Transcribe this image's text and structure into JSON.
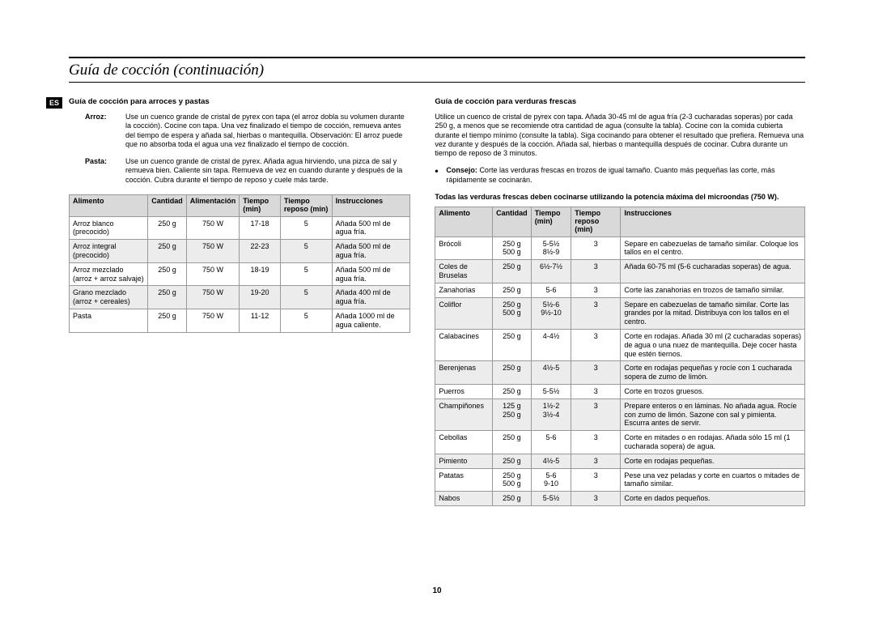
{
  "pageTitle": "Guía de cocción (continuación)",
  "esLabel": "ES",
  "pageNumber": "10",
  "left": {
    "heading": "Guía de cocción para arroces y pastas",
    "arrozLabel": "Arroz:",
    "arrozText": "Use un cuenco grande de cristal de pyrex con tapa (el arroz dobla su volumen durante la cocción). Cocine con tapa.\nUna vez finalizado el tiempo de cocción, remueva antes del tiempo de espera y añada sal, hierbas o mantequilla.\nObservación: El arroz puede que no absorba toda el agua una vez finalizado el tiempo de cocción.",
    "pastaLabel": "Pasta:",
    "pastaText": "Use un cuenco grande de cristal de pyrex. Añada agua hirviendo, una pizca de sal y remueva bien. Caliente sin tapa.\nRemueva de vez en cuando durante y después de la cocción. Cubra durante el tiempo de reposo y cuele más tarde.",
    "headers": {
      "c0": "Alimento",
      "c1": "Cantidad",
      "c2": "Alimentación",
      "c3": "Tiempo (min)",
      "c4": "Tiempo reposo (min)",
      "c5": "Instrucciones"
    },
    "rows": [
      {
        "a": "Arroz blanco (precocido)",
        "q": "250 g",
        "p": "750 W",
        "t": "17-18",
        "r": "5",
        "i": "Añada 500 ml de agua fría."
      },
      {
        "a": "Arroz integral (precocido)",
        "q": "250 g",
        "p": "750 W",
        "t": "22-23",
        "r": "5",
        "i": "Añada 500 ml de agua fría."
      },
      {
        "a": "Arroz mezclado (arroz + arroz salvaje)",
        "q": "250 g",
        "p": "750 W",
        "t": "18-19",
        "r": "5",
        "i": "Añada 500 ml de agua fría."
      },
      {
        "a": "Grano mezclado (arroz + cereales)",
        "q": "250 g",
        "p": "750 W",
        "t": "19-20",
        "r": "5",
        "i": "Añada 400 ml de agua fría."
      },
      {
        "a": "Pasta",
        "q": "250 g",
        "p": "750 W",
        "t": "11-12",
        "r": "5",
        "i": "Añada 1000 ml de agua caliente."
      }
    ]
  },
  "right": {
    "heading": "Guía de cocción para verduras frescas",
    "intro": "Utilice un cuenco de cristal de pyrex con tapa. Añada 30-45 ml de agua fría (2-3 cucharadas soperas) por cada 250 g, a menos que se recomiende otra cantidad de agua (consulte la tabla). Cocine con la comida cubierta durante el tiempo mínimo (consulte la tabla). Siga cocinando para obtener el resultado que prefiera. Remueva una vez durante y después de la cocción. Añada sal, hierbas o mantequilla después de cocinar. Cubra durante un tiempo de reposo de 3 minutos.",
    "consejoLabel": "Consejo:",
    "consejoText": "Corte las verduras frescas en trozos de igual tamaño. Cuanto más pequeñas las corte, más rápidamente se cocinarán.",
    "note": "Todas las verduras frescas deben cocinarse utilizando la potencia máxima del microondas (750 W).",
    "headers": {
      "c0": "Alimento",
      "c1": "Cantidad",
      "c2": "Tiempo (min)",
      "c3": "Tiempo reposo (min)",
      "c4": "Instrucciones"
    },
    "rows": [
      {
        "a": "Brócoli",
        "q": "250 g\n500 g",
        "t": "5-5½\n8½-9",
        "r": "3",
        "i": "Separe en cabezuelas de tamaño similar. Coloque los tallos en el centro."
      },
      {
        "a": "Coles de Bruselas",
        "q": "250 g",
        "t": "6½-7½",
        "r": "3",
        "i": "Añada 60-75 ml (5-6 cucharadas soperas) de agua."
      },
      {
        "a": "Zanahorias",
        "q": "250 g",
        "t": "5-6",
        "r": "3",
        "i": "Corte las zanahorias en trozos de tamaño similar."
      },
      {
        "a": "Coliflor",
        "q": "250 g\n500 g",
        "t": "5½-6\n9½-10",
        "r": "3",
        "i": "Separe en cabezuelas de tamaño similar. Corte las grandes por la mitad. Distribuya con los tallos en el centro."
      },
      {
        "a": "Calabacines",
        "q": "250 g",
        "t": "4-4½",
        "r": "3",
        "i": "Corte en rodajas. Añada 30 ml (2 cucharadas soperas) de agua o una nuez de mantequilla. Deje cocer hasta que estén tiernos."
      },
      {
        "a": "Berenjenas",
        "q": "250 g",
        "t": "4½-5",
        "r": "3",
        "i": "Corte en rodajas pequeñas y rocíe con 1 cucharada sopera de zumo de limón."
      },
      {
        "a": "Puerros",
        "q": "250 g",
        "t": "5-5½",
        "r": "3",
        "i": "Corte en trozos gruesos."
      },
      {
        "a": "Champiñones",
        "q": "125 g\n250 g",
        "t": "1½-2\n3½-4",
        "r": "3",
        "i": "Prepare enteros o en láminas. No añada agua. Rocíe con zumo de limón. Sazone con sal y pimienta. Escurra antes de servir."
      },
      {
        "a": "Cebollas",
        "q": "250 g",
        "t": "5-6",
        "r": "3",
        "i": "Corte en mitades o en rodajas. Añada sólo 15 ml (1 cucharada sopera) de agua."
      },
      {
        "a": "Pimiento",
        "q": "250 g",
        "t": "4½-5",
        "r": "3",
        "i": "Corte en rodajas pequeñas."
      },
      {
        "a": "Patatas",
        "q": "250 g\n500 g",
        "t": "5-6\n9-10",
        "r": "3",
        "i": "Pese una vez peladas y corte en cuartos o mitades de tamaño similar."
      },
      {
        "a": "Nabos",
        "q": "250 g",
        "t": "5-5½",
        "r": "3",
        "i": "Corte en dados pequeños."
      }
    ]
  }
}
